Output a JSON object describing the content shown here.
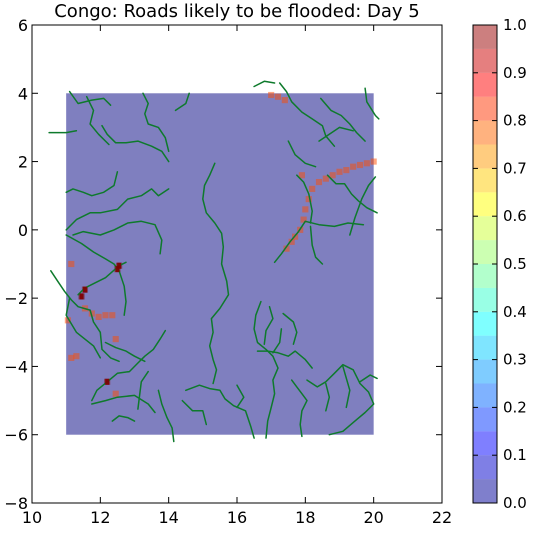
{
  "chart_data": {
    "type": "heatmap",
    "title": "Congo: Roads likely to be flooded: Day 5",
    "xlabel": "",
    "ylabel": "",
    "xlim": [
      10,
      22
    ],
    "ylim": [
      -8,
      6
    ],
    "x_ticks": [
      10,
      12,
      14,
      16,
      18,
      20,
      22
    ],
    "y_ticks": [
      6,
      4,
      2,
      0,
      -2,
      -4,
      -6,
      -8
    ],
    "y_tick_labels": [
      "6",
      "4",
      "2",
      "0",
      "−2",
      "−4",
      "−6",
      "−8"
    ],
    "grid": false,
    "field_extent": {
      "x": [
        11,
        20
      ],
      "y": [
        -6,
        4
      ]
    },
    "background_value": 0.0,
    "flood_cells": [
      {
        "x": 12.55,
        "y": -1.05,
        "value": 1.0
      },
      {
        "x": 12.5,
        "y": -1.15,
        "value": 1.0
      },
      {
        "x": 11.55,
        "y": -1.75,
        "value": 1.0
      },
      {
        "x": 11.45,
        "y": -1.95,
        "value": 1.0
      },
      {
        "x": 12.2,
        "y": -4.45,
        "value": 1.0
      },
      {
        "x": 17.0,
        "y": 3.95,
        "value": 0.8
      },
      {
        "x": 17.2,
        "y": 3.9,
        "value": 0.8
      },
      {
        "x": 17.4,
        "y": 3.8,
        "value": 0.8
      },
      {
        "x": 17.9,
        "y": 1.6,
        "value": 0.8
      },
      {
        "x": 18.2,
        "y": 1.2,
        "value": 0.8
      },
      {
        "x": 18.4,
        "y": 1.4,
        "value": 0.8
      },
      {
        "x": 18.6,
        "y": 1.5,
        "value": 0.8
      },
      {
        "x": 18.8,
        "y": 1.6,
        "value": 0.8
      },
      {
        "x": 19.0,
        "y": 1.7,
        "value": 0.8
      },
      {
        "x": 19.2,
        "y": 1.75,
        "value": 0.8
      },
      {
        "x": 19.4,
        "y": 1.85,
        "value": 0.8
      },
      {
        "x": 19.6,
        "y": 1.9,
        "value": 0.8
      },
      {
        "x": 19.8,
        "y": 1.95,
        "value": 0.8
      },
      {
        "x": 20.0,
        "y": 2.0,
        "value": 0.8
      },
      {
        "x": 18.1,
        "y": 0.9,
        "value": 0.8
      },
      {
        "x": 18.0,
        "y": 0.6,
        "value": 0.8
      },
      {
        "x": 17.95,
        "y": 0.3,
        "value": 0.8
      },
      {
        "x": 17.85,
        "y": 0.0,
        "value": 0.8
      },
      {
        "x": 17.7,
        "y": -0.2,
        "value": 0.8
      },
      {
        "x": 17.6,
        "y": -0.35,
        "value": 0.8
      },
      {
        "x": 17.45,
        "y": -0.55,
        "value": 0.8
      },
      {
        "x": 11.15,
        "y": -1.0,
        "value": 0.8
      },
      {
        "x": 11.05,
        "y": -2.65,
        "value": 0.8
      },
      {
        "x": 11.55,
        "y": -2.3,
        "value": 0.8
      },
      {
        "x": 11.75,
        "y": -2.45,
        "value": 0.8
      },
      {
        "x": 11.95,
        "y": -2.55,
        "value": 0.8
      },
      {
        "x": 12.15,
        "y": -2.5,
        "value": 0.8
      },
      {
        "x": 12.35,
        "y": -2.5,
        "value": 0.8
      },
      {
        "x": 11.15,
        "y": -3.75,
        "value": 0.8
      },
      {
        "x": 11.3,
        "y": -3.7,
        "value": 0.8
      },
      {
        "x": 12.45,
        "y": -3.2,
        "value": 0.8
      },
      {
        "x": 12.45,
        "y": -4.8,
        "value": 0.8
      }
    ],
    "roads": [
      [
        [
          11.6,
          3.9
        ],
        [
          11.8,
          3.5
        ],
        [
          11.7,
          3.1
        ],
        [
          11.95,
          2.8
        ],
        [
          12.25,
          2.5
        ]
      ],
      [
        [
          10.5,
          2.85
        ],
        [
          11.0,
          2.85
        ],
        [
          11.3,
          2.9
        ]
      ],
      [
        [
          11.1,
          4.05
        ],
        [
          11.35,
          3.7
        ],
        [
          11.75,
          3.8
        ],
        [
          12.1,
          3.85
        ],
        [
          12.3,
          3.65
        ]
      ],
      [
        [
          12.05,
          3.05
        ],
        [
          12.2,
          2.8
        ],
        [
          12.45,
          2.55
        ],
        [
          12.75,
          2.55
        ],
        [
          13.1,
          2.6
        ],
        [
          13.5,
          2.45
        ],
        [
          13.8,
          2.3
        ],
        [
          14.0,
          2.0
        ]
      ],
      [
        [
          13.25,
          4.0
        ],
        [
          13.4,
          3.7
        ],
        [
          13.3,
          3.4
        ],
        [
          13.4,
          3.1
        ],
        [
          13.7,
          3.0
        ],
        [
          13.9,
          2.7
        ],
        [
          14.0,
          2.3
        ]
      ],
      [
        [
          14.6,
          4.0
        ],
        [
          14.5,
          3.7
        ],
        [
          14.2,
          3.5
        ]
      ],
      [
        [
          11.0,
          1.1
        ],
        [
          11.2,
          1.2
        ],
        [
          11.5,
          1.1
        ],
        [
          11.75,
          1.0
        ],
        [
          12.1,
          1.1
        ],
        [
          12.4,
          1.3
        ],
        [
          12.5,
          1.7
        ]
      ],
      [
        [
          11.0,
          0.0
        ],
        [
          11.3,
          0.3
        ],
        [
          11.7,
          0.5
        ],
        [
          12.0,
          0.5
        ],
        [
          12.5,
          0.6
        ],
        [
          12.8,
          0.9
        ],
        [
          13.2,
          1.0
        ],
        [
          13.5,
          1.2
        ],
        [
          13.7,
          1.0
        ],
        [
          14.0,
          1.2
        ]
      ],
      [
        [
          11.2,
          -0.15
        ],
        [
          11.5,
          -0.05
        ],
        [
          12.0,
          -0.15
        ],
        [
          12.4,
          0.0
        ],
        [
          12.8,
          0.2
        ],
        [
          13.2,
          0.25
        ],
        [
          13.6,
          0.15
        ],
        [
          13.8,
          -0.3
        ],
        [
          13.75,
          -0.7
        ]
      ],
      [
        [
          11.0,
          -0.15
        ],
        [
          11.45,
          -0.4
        ],
        [
          11.8,
          -0.65
        ],
        [
          12.15,
          -0.85
        ],
        [
          12.4,
          -1.0
        ],
        [
          12.55,
          -1.2
        ],
        [
          12.7,
          -1.65
        ],
        [
          12.75,
          -2.1
        ],
        [
          12.7,
          -2.5
        ]
      ],
      [
        [
          12.75,
          -0.95
        ],
        [
          12.55,
          -1.05
        ],
        [
          12.15,
          -1.4
        ],
        [
          11.85,
          -1.55
        ],
        [
          11.55,
          -1.7
        ],
        [
          11.35,
          -1.9
        ]
      ],
      [
        [
          10.55,
          -1.2
        ],
        [
          10.75,
          -1.5
        ],
        [
          10.95,
          -1.8
        ],
        [
          11.15,
          -2.05
        ],
        [
          11.35,
          -2.25
        ],
        [
          11.7,
          -2.35
        ],
        [
          11.8,
          -2.7
        ],
        [
          12.0,
          -3.0
        ],
        [
          12.05,
          -3.5
        ],
        [
          12.3,
          -3.75
        ],
        [
          12.55,
          -3.85
        ]
      ],
      [
        [
          11.1,
          -2.0
        ],
        [
          11.0,
          -2.5
        ],
        [
          11.3,
          -3.0
        ],
        [
          11.8,
          -3.4
        ],
        [
          12.0,
          -3.75
        ]
      ],
      [
        [
          12.15,
          -3.3
        ],
        [
          12.45,
          -3.45
        ],
        [
          12.75,
          -3.55
        ],
        [
          13.0,
          -3.7
        ],
        [
          13.3,
          -3.85
        ]
      ],
      [
        [
          13.9,
          -2.95
        ],
        [
          13.75,
          -3.2
        ],
        [
          13.55,
          -3.5
        ],
        [
          13.3,
          -3.7
        ],
        [
          13.1,
          -3.9
        ],
        [
          12.85,
          -4.15
        ],
        [
          12.5,
          -4.2
        ],
        [
          12.2,
          -4.45
        ],
        [
          11.9,
          -4.7
        ],
        [
          11.75,
          -5.0
        ]
      ],
      [
        [
          13.4,
          -4.15
        ],
        [
          13.2,
          -4.45
        ],
        [
          13.15,
          -4.85
        ],
        [
          13.1,
          -5.25
        ]
      ],
      [
        [
          11.75,
          -5.1
        ],
        [
          12.15,
          -5.0
        ],
        [
          12.5,
          -4.9
        ],
        [
          13.0,
          -4.85
        ],
        [
          13.4,
          -5.1
        ],
        [
          13.6,
          -5.35
        ]
      ],
      [
        [
          13.7,
          -4.7
        ],
        [
          13.8,
          -5.1
        ],
        [
          13.95,
          -5.5
        ],
        [
          14.1,
          -5.8
        ],
        [
          14.15,
          -6.2
        ]
      ],
      [
        [
          14.4,
          -5.0
        ],
        [
          14.7,
          -5.3
        ],
        [
          15.0,
          -5.3
        ],
        [
          15.1,
          -5.7
        ]
      ],
      [
        [
          12.35,
          -5.6
        ],
        [
          12.55,
          -5.45
        ],
        [
          12.8,
          -5.5
        ],
        [
          13.0,
          -5.6
        ]
      ],
      [
        [
          15.35,
          1.95
        ],
        [
          15.2,
          1.6
        ],
        [
          15.05,
          1.3
        ],
        [
          15.0,
          0.9
        ],
        [
          15.1,
          0.5
        ],
        [
          15.35,
          0.2
        ],
        [
          15.55,
          -0.1
        ],
        [
          15.6,
          -0.5
        ],
        [
          15.55,
          -1.0
        ],
        [
          15.7,
          -1.5
        ],
        [
          15.75,
          -1.9
        ],
        [
          15.5,
          -2.3
        ],
        [
          15.25,
          -2.6
        ],
        [
          15.3,
          -3.0
        ],
        [
          15.2,
          -3.4
        ],
        [
          15.3,
          -3.8
        ],
        [
          15.4,
          -4.1
        ],
        [
          15.3,
          -4.5
        ]
      ],
      [
        [
          14.5,
          -4.7
        ],
        [
          14.9,
          -4.55
        ],
        [
          15.2,
          -4.65
        ],
        [
          15.5,
          -4.7
        ],
        [
          15.65,
          -4.95
        ],
        [
          15.9,
          -5.15
        ],
        [
          16.25,
          -5.3
        ],
        [
          16.4,
          -5.75
        ],
        [
          16.5,
          -6.1
        ]
      ],
      [
        [
          16.0,
          -4.55
        ],
        [
          16.2,
          -4.9
        ],
        [
          16.0,
          -5.2
        ]
      ],
      [
        [
          16.7,
          -2.1
        ],
        [
          16.55,
          -2.5
        ],
        [
          16.5,
          -2.9
        ],
        [
          16.6,
          -3.3
        ],
        [
          16.85,
          -3.5
        ],
        [
          17.05,
          -3.7
        ],
        [
          17.2,
          -4.05
        ],
        [
          17.05,
          -4.4
        ],
        [
          17.1,
          -4.8
        ],
        [
          17.0,
          -5.2
        ],
        [
          16.9,
          -5.6
        ],
        [
          16.85,
          -6.1
        ]
      ],
      [
        [
          16.6,
          -3.55
        ],
        [
          16.9,
          -3.55
        ],
        [
          17.2,
          -3.6
        ],
        [
          17.5,
          -3.7
        ],
        [
          17.7,
          -3.55
        ],
        [
          18.0,
          -3.8
        ],
        [
          18.2,
          -4.05
        ]
      ],
      [
        [
          16.95,
          -2.25
        ],
        [
          17.05,
          -2.6
        ],
        [
          16.85,
          -2.95
        ],
        [
          16.8,
          -3.35
        ]
      ],
      [
        [
          17.35,
          -2.45
        ],
        [
          17.65,
          -2.7
        ],
        [
          17.75,
          -3.0
        ],
        [
          17.65,
          -3.35
        ]
      ],
      [
        [
          17.3,
          -2.9
        ],
        [
          17.25,
          -3.3
        ],
        [
          17.05,
          -3.6
        ]
      ],
      [
        [
          17.6,
          -4.4
        ],
        [
          17.75,
          -4.6
        ],
        [
          17.9,
          -4.8
        ],
        [
          18.05,
          -5.0
        ],
        [
          17.9,
          -5.3
        ],
        [
          17.85,
          -5.7
        ],
        [
          17.9,
          -6.05
        ]
      ],
      [
        [
          18.05,
          -4.4
        ],
        [
          18.35,
          -4.6
        ],
        [
          18.6,
          -4.45
        ],
        [
          18.85,
          -4.2
        ],
        [
          19.1,
          -3.95
        ],
        [
          19.4,
          -4.1
        ],
        [
          19.6,
          -4.5
        ],
        [
          19.85,
          -4.75
        ],
        [
          20.0,
          -5.1
        ],
        [
          19.75,
          -5.35
        ],
        [
          19.45,
          -5.6
        ],
        [
          19.1,
          -5.9
        ],
        [
          18.7,
          -6.0
        ]
      ],
      [
        [
          18.6,
          -4.5
        ],
        [
          18.7,
          -4.9
        ],
        [
          18.6,
          -5.3
        ]
      ],
      [
        [
          19.1,
          -4.0
        ],
        [
          19.3,
          -4.7
        ],
        [
          19.2,
          -5.2
        ]
      ],
      [
        [
          19.6,
          -4.45
        ],
        [
          19.9,
          -4.25
        ],
        [
          20.1,
          -4.35
        ]
      ],
      [
        [
          17.1,
          -0.95
        ],
        [
          17.3,
          -0.7
        ],
        [
          17.55,
          -0.35
        ],
        [
          17.8,
          -0.05
        ],
        [
          18.0,
          0.25
        ],
        [
          18.4,
          0.15
        ],
        [
          18.85,
          0.1
        ],
        [
          19.25,
          0.2
        ],
        [
          19.7,
          0.15
        ]
      ],
      [
        [
          18.15,
          0.1
        ],
        [
          18.2,
          -0.45
        ],
        [
          18.3,
          -0.8
        ],
        [
          18.5,
          -1.0
        ]
      ],
      [
        [
          17.75,
          1.6
        ],
        [
          17.95,
          1.4
        ],
        [
          18.1,
          1.05
        ],
        [
          18.2,
          0.55
        ],
        [
          18.15,
          0.2
        ]
      ],
      [
        [
          18.65,
          1.6
        ],
        [
          18.9,
          1.35
        ],
        [
          19.15,
          1.35
        ],
        [
          19.35,
          1.05
        ],
        [
          19.55,
          0.85
        ],
        [
          19.8,
          0.65
        ],
        [
          20.1,
          0.5
        ]
      ],
      [
        [
          19.3,
          -0.15
        ],
        [
          19.45,
          0.35
        ],
        [
          19.65,
          0.9
        ],
        [
          19.85,
          1.3
        ],
        [
          20.05,
          1.55
        ]
      ],
      [
        [
          17.5,
          2.6
        ],
        [
          17.7,
          2.2
        ],
        [
          18.0,
          1.95
        ],
        [
          18.3,
          1.85
        ]
      ],
      [
        [
          17.25,
          4.3
        ],
        [
          17.45,
          4.05
        ],
        [
          17.6,
          3.75
        ],
        [
          17.9,
          3.45
        ],
        [
          18.2,
          3.25
        ],
        [
          18.5,
          3.05
        ],
        [
          18.6,
          2.75
        ],
        [
          18.85,
          2.45
        ]
      ],
      [
        [
          16.5,
          4.2
        ],
        [
          16.8,
          4.35
        ],
        [
          17.1,
          4.3
        ]
      ],
      [
        [
          18.45,
          3.85
        ],
        [
          18.75,
          3.5
        ],
        [
          19.05,
          3.35
        ],
        [
          19.3,
          3.1
        ],
        [
          19.5,
          2.85
        ],
        [
          19.75,
          2.6
        ]
      ],
      [
        [
          19.75,
          4.15
        ],
        [
          19.8,
          3.75
        ],
        [
          20.05,
          3.35
        ],
        [
          20.15,
          3.25
        ]
      ],
      [
        [
          18.4,
          2.6
        ],
        [
          18.7,
          2.8
        ],
        [
          19.0,
          3.0
        ],
        [
          19.4,
          2.9
        ]
      ]
    ]
  },
  "colorbar": {
    "tick_values": [
      0.0,
      0.1,
      0.2,
      0.3,
      0.4,
      0.5,
      0.6,
      0.7,
      0.8,
      0.9,
      1.0
    ],
    "tick_labels": [
      "0.0",
      "0.1",
      "0.2",
      "0.3",
      "0.4",
      "0.5",
      "0.6",
      "0.7",
      "0.8",
      "0.9",
      "1.0"
    ],
    "levels": 20,
    "alpha": 0.5,
    "colormap": "jet"
  },
  "colors": {
    "road": "#0e7a2c",
    "axes": "#000000",
    "background": "#ffffff"
  }
}
